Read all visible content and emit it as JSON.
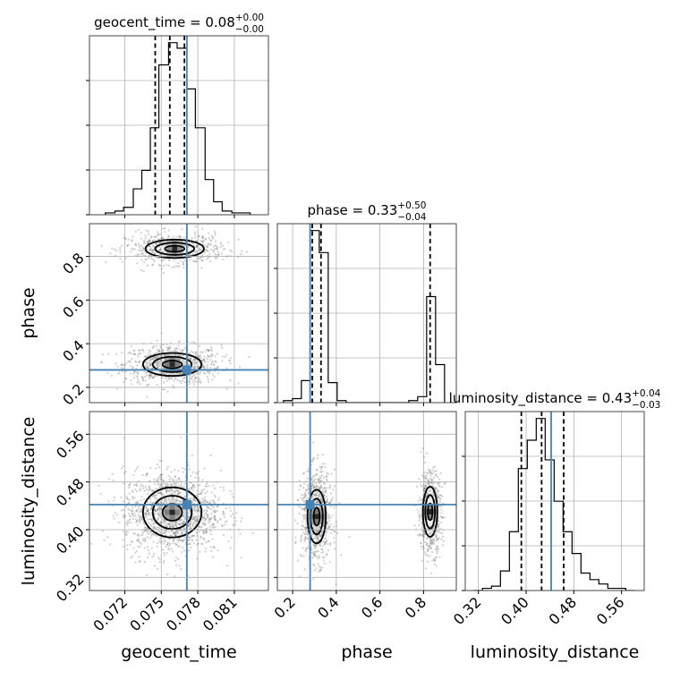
{
  "chart_data": {
    "type": "corner",
    "parameters": [
      "geocent_time",
      "phase",
      "luminosity_distance"
    ],
    "axis_labels": {
      "geocent_time": "geocent_time",
      "phase": "phase",
      "luminosity_distance": "luminosity_distance"
    },
    "ranges": {
      "geocent_time": [
        0.0691,
        0.0838
      ],
      "phase": [
        0.13,
        0.95
      ],
      "luminosity_distance": [
        0.298,
        0.598
      ]
    },
    "ticks": {
      "geocent_time": [
        {
          "value": 0.072,
          "label": "0.072"
        },
        {
          "value": 0.075,
          "label": "0.075"
        },
        {
          "value": 0.078,
          "label": "0.078"
        },
        {
          "value": 0.081,
          "label": "0.081"
        }
      ],
      "phase": [
        {
          "value": 0.2,
          "label": "0.2"
        },
        {
          "value": 0.4,
          "label": "0.4"
        },
        {
          "value": 0.6,
          "label": "0.6"
        },
        {
          "value": 0.8,
          "label": "0.8"
        }
      ],
      "luminosity_distance": [
        {
          "value": 0.32,
          "label": "0.32"
        },
        {
          "value": 0.4,
          "label": "0.40"
        },
        {
          "value": 0.48,
          "label": "0.48"
        },
        {
          "value": 0.56,
          "label": "0.56"
        }
      ]
    },
    "titles": {
      "geocent_time": {
        "prefix": "geocent_time = 0.08",
        "plus": "+0.00",
        "minus": "−0.00"
      },
      "phase": {
        "prefix": "phase = 0.33",
        "plus": "+0.50",
        "minus": "−0.04"
      },
      "luminosity_distance": {
        "prefix": "luminosity_distance = 0.43",
        "plus": "+0.04",
        "minus": "−0.03"
      }
    },
    "quantiles": {
      "geocent_time": [
        0.0745,
        0.0757,
        0.0769
      ],
      "phase": [
        0.29,
        0.33,
        0.83
      ],
      "luminosity_distance": [
        0.392,
        0.426,
        0.463
      ]
    },
    "truths": {
      "geocent_time": 0.0771,
      "phase": 0.28,
      "luminosity_distance": 0.442
    },
    "histograms": {
      "geocent_time": {
        "edges": [
          0.0704,
          0.0712,
          0.0719,
          0.0727,
          0.0734,
          0.0741,
          0.0748,
          0.0756,
          0.0763,
          0.0771,
          0.0778,
          0.0786,
          0.0793,
          0.08,
          0.0808,
          0.0815,
          0.0823
        ],
        "counts": [
          1,
          2,
          4,
          14,
          24,
          47,
          81,
          93,
          90,
          68,
          47,
          19,
          7,
          2,
          1,
          1
        ]
      },
      "phase": {
        "edges": [
          0.158,
          0.199,
          0.24,
          0.281,
          0.322,
          0.363,
          0.404,
          0.445,
          0.486,
          0.527,
          0.568,
          0.609,
          0.65,
          0.691,
          0.732,
          0.773,
          0.814,
          0.855,
          0.896
        ],
        "counts": [
          1,
          2,
          11,
          86,
          75,
          10,
          1,
          0,
          0,
          0,
          0,
          0,
          0,
          0,
          1,
          3,
          53,
          19
        ]
      },
      "luminosity_distance": {
        "edges": [
          0.312,
          0.327,
          0.342,
          0.357,
          0.372,
          0.387,
          0.402,
          0.417,
          0.432,
          0.447,
          0.462,
          0.477,
          0.492,
          0.507,
          0.522,
          0.537,
          0.552,
          0.567,
          0.582
        ],
        "counts": [
          0,
          1,
          2,
          9,
          27,
          56,
          69,
          79,
          60,
          41,
          27,
          17,
          8,
          5,
          3,
          1,
          1,
          0
        ]
      }
    },
    "joint_modes": [
      {
        "x": "geocent_time",
        "y": "phase",
        "center": [
          0.0759,
          0.305
        ],
        "spread": [
          0.0016,
          0.035
        ],
        "weight": 0.58
      },
      {
        "x": "geocent_time",
        "y": "phase",
        "center": [
          0.0761,
          0.835
        ],
        "spread": [
          0.0016,
          0.028
        ],
        "weight": 0.42
      },
      {
        "x": "geocent_time",
        "y": "luminosity_distance",
        "center": [
          0.0759,
          0.429
        ],
        "spread": [
          0.0016,
          0.028
        ],
        "weight": 1.0
      },
      {
        "x": "phase",
        "y": "luminosity_distance",
        "center": [
          0.31,
          0.422
        ],
        "spread": [
          0.028,
          0.03
        ],
        "weight": 0.58
      },
      {
        "x": "phase",
        "y": "luminosity_distance",
        "center": [
          0.83,
          0.43
        ],
        "spread": [
          0.022,
          0.028
        ],
        "weight": 0.42
      }
    ],
    "contour_levels_sigma": [
      0.5,
      1.0,
      1.5
    ],
    "grid": true,
    "colors": {
      "histogram": "#000000",
      "truth": "#4682b4",
      "samples": "#777777"
    }
  }
}
